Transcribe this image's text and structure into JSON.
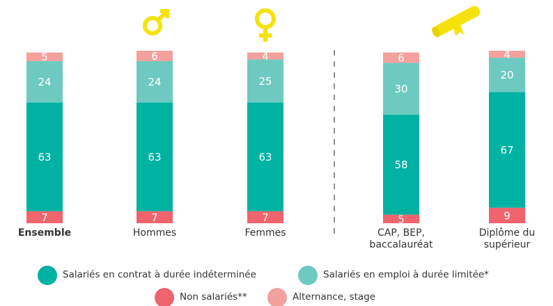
{
  "chart_data": {
    "type": "stacked_bar",
    "categories": [
      "Ensemble",
      "Hommes",
      "Femmes",
      "CAP, BEP,\nbaccalauréat",
      "Diplôme du\nsupérieur"
    ],
    "series": [
      {
        "name": "Non salariés**",
        "color": "#f0646e",
        "values": [
          7,
          7,
          7,
          5,
          9
        ]
      },
      {
        "name": "Salariés en contrat à durée indéterminée",
        "color": "#00b2a2",
        "values": [
          63,
          63,
          63,
          58,
          67
        ]
      },
      {
        "name": "Salariés en emploi à durée limitée*",
        "color": "#6ecac0",
        "values": [
          24,
          24,
          25,
          30,
          20
        ]
      },
      {
        "name": "Alternance, stage",
        "color": "#f4a09c",
        "values": [
          5,
          6,
          4,
          6,
          4
        ]
      }
    ]
  }
}
